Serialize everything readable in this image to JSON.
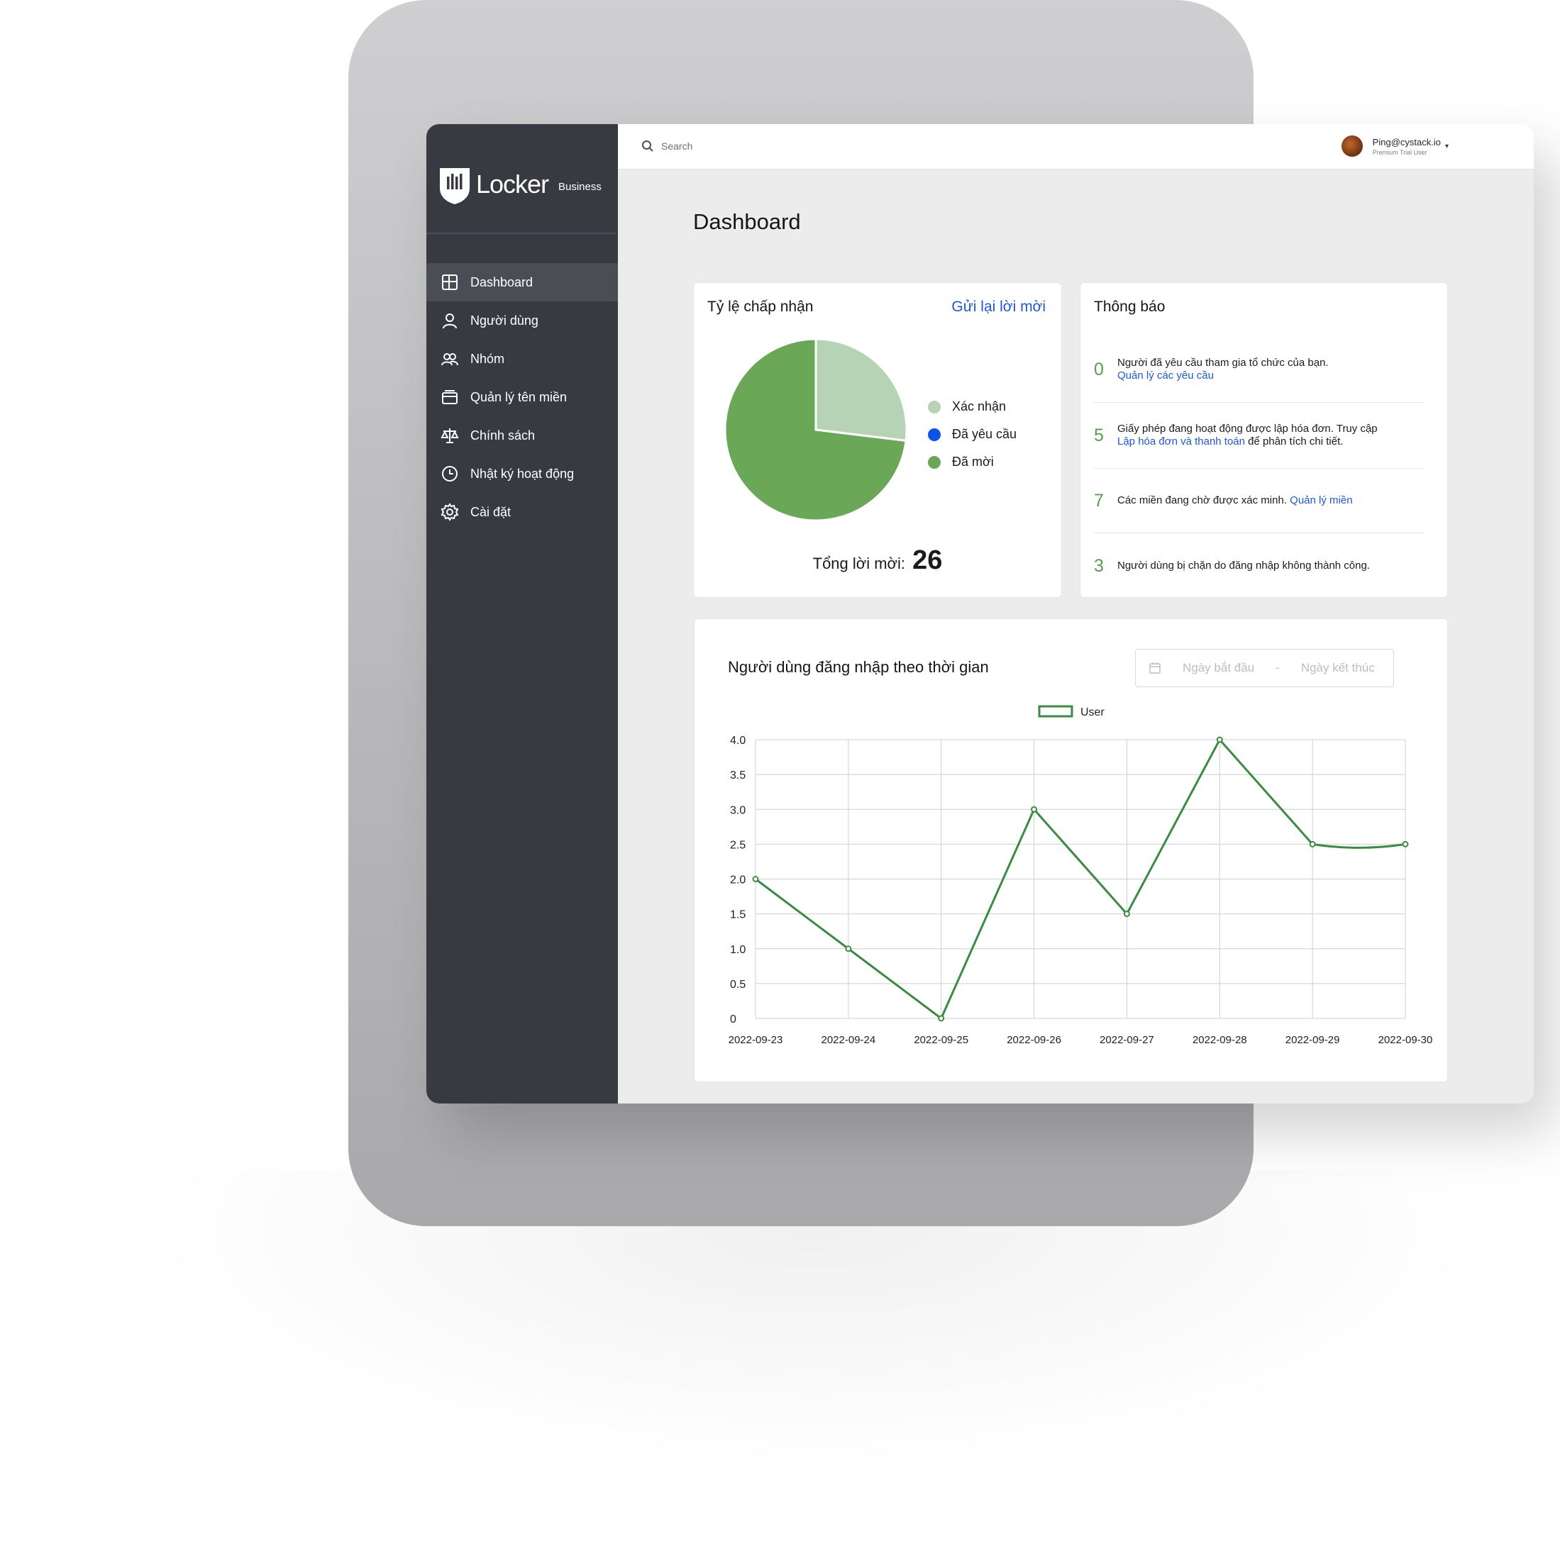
{
  "brand": {
    "name": "Locker",
    "sub": "Business"
  },
  "sidebar": {
    "items": [
      {
        "label": "Dashboard",
        "icon": "grid-icon",
        "active": true
      },
      {
        "label": "Người dùng",
        "icon": "user-icon",
        "active": false
      },
      {
        "label": "Nhóm",
        "icon": "group-icon",
        "active": false
      },
      {
        "label": "Quản lý tên miền",
        "icon": "domain-icon",
        "active": false
      },
      {
        "label": "Chính sách",
        "icon": "scale-icon",
        "active": false
      },
      {
        "label": "Nhật ký hoạt động",
        "icon": "clock-icon",
        "active": false
      },
      {
        "label": "Cài đặt",
        "icon": "gear-icon",
        "active": false
      }
    ]
  },
  "topbar": {
    "search_placeholder": "Search",
    "user_email": "Ping@cystack.io",
    "user_plan": "Premium Trial User"
  },
  "page": {
    "title": "Dashboard"
  },
  "acceptance": {
    "title": "Tỷ lệ chấp nhận",
    "resend_label": "Gửi lại lời mời",
    "total_label": "Tổng lời mời:",
    "total_value": "26",
    "legend": [
      {
        "label": "Xác nhận",
        "color": "#b7d3b5"
      },
      {
        "label": "Đã yêu cầu",
        "color": "#0b54e3"
      },
      {
        "label": "Đã mời",
        "color": "#6aa757"
      }
    ]
  },
  "notifications": {
    "title": "Thông báo",
    "items": [
      {
        "count": "0",
        "text": "Người đã yêu cầu tham gia tổ chức của bạn.",
        "link": "Quản lý các yêu cầu",
        "after": ""
      },
      {
        "count": "5",
        "text": "Giấy phép đang hoạt động được lập hóa đơn. Truy cập",
        "link": "Lập hóa đơn và thanh toán",
        "after": "để phân tích chi tiết."
      },
      {
        "count": "7",
        "text": "Các miền đang chờ được xác minh.",
        "link": "Quản lý miền",
        "after": ""
      },
      {
        "count": "3",
        "text": "Người dùng bị chặn do đăng nhập không thành công.",
        "link": "",
        "after": ""
      }
    ]
  },
  "login_chart": {
    "title": "Người dùng đăng nhập theo thời gian",
    "start_placeholder": "Ngày bắt đầu",
    "end_placeholder": "Ngày kết thúc",
    "separator": "-"
  },
  "chart_data": [
    {
      "type": "pie",
      "categories": [
        "Xác nhận",
        "Đã yêu cầu",
        "Đã mời"
      ],
      "values": [
        7,
        0,
        19
      ],
      "colors": [
        "#b7d3b5",
        "#0b54e3",
        "#6aa757"
      ],
      "legend": "right"
    },
    {
      "type": "line",
      "title": "",
      "x": [
        "2022-09-23",
        "2022-09-24",
        "2022-09-25",
        "2022-09-26",
        "2022-09-27",
        "2022-09-28",
        "2022-09-29",
        "2022-09-30"
      ],
      "series": [
        {
          "name": "User",
          "values": [
            2,
            1,
            0,
            3,
            1.5,
            4,
            2.5,
            2.5
          ],
          "color": "#3a8b43"
        }
      ],
      "yticks": [
        "0",
        "0.5",
        "1.0",
        "1.5",
        "2.0",
        "2.5",
        "3.0",
        "3.5",
        "4.0"
      ],
      "ylim": [
        0,
        4
      ],
      "grid": true,
      "legend": "top"
    }
  ]
}
